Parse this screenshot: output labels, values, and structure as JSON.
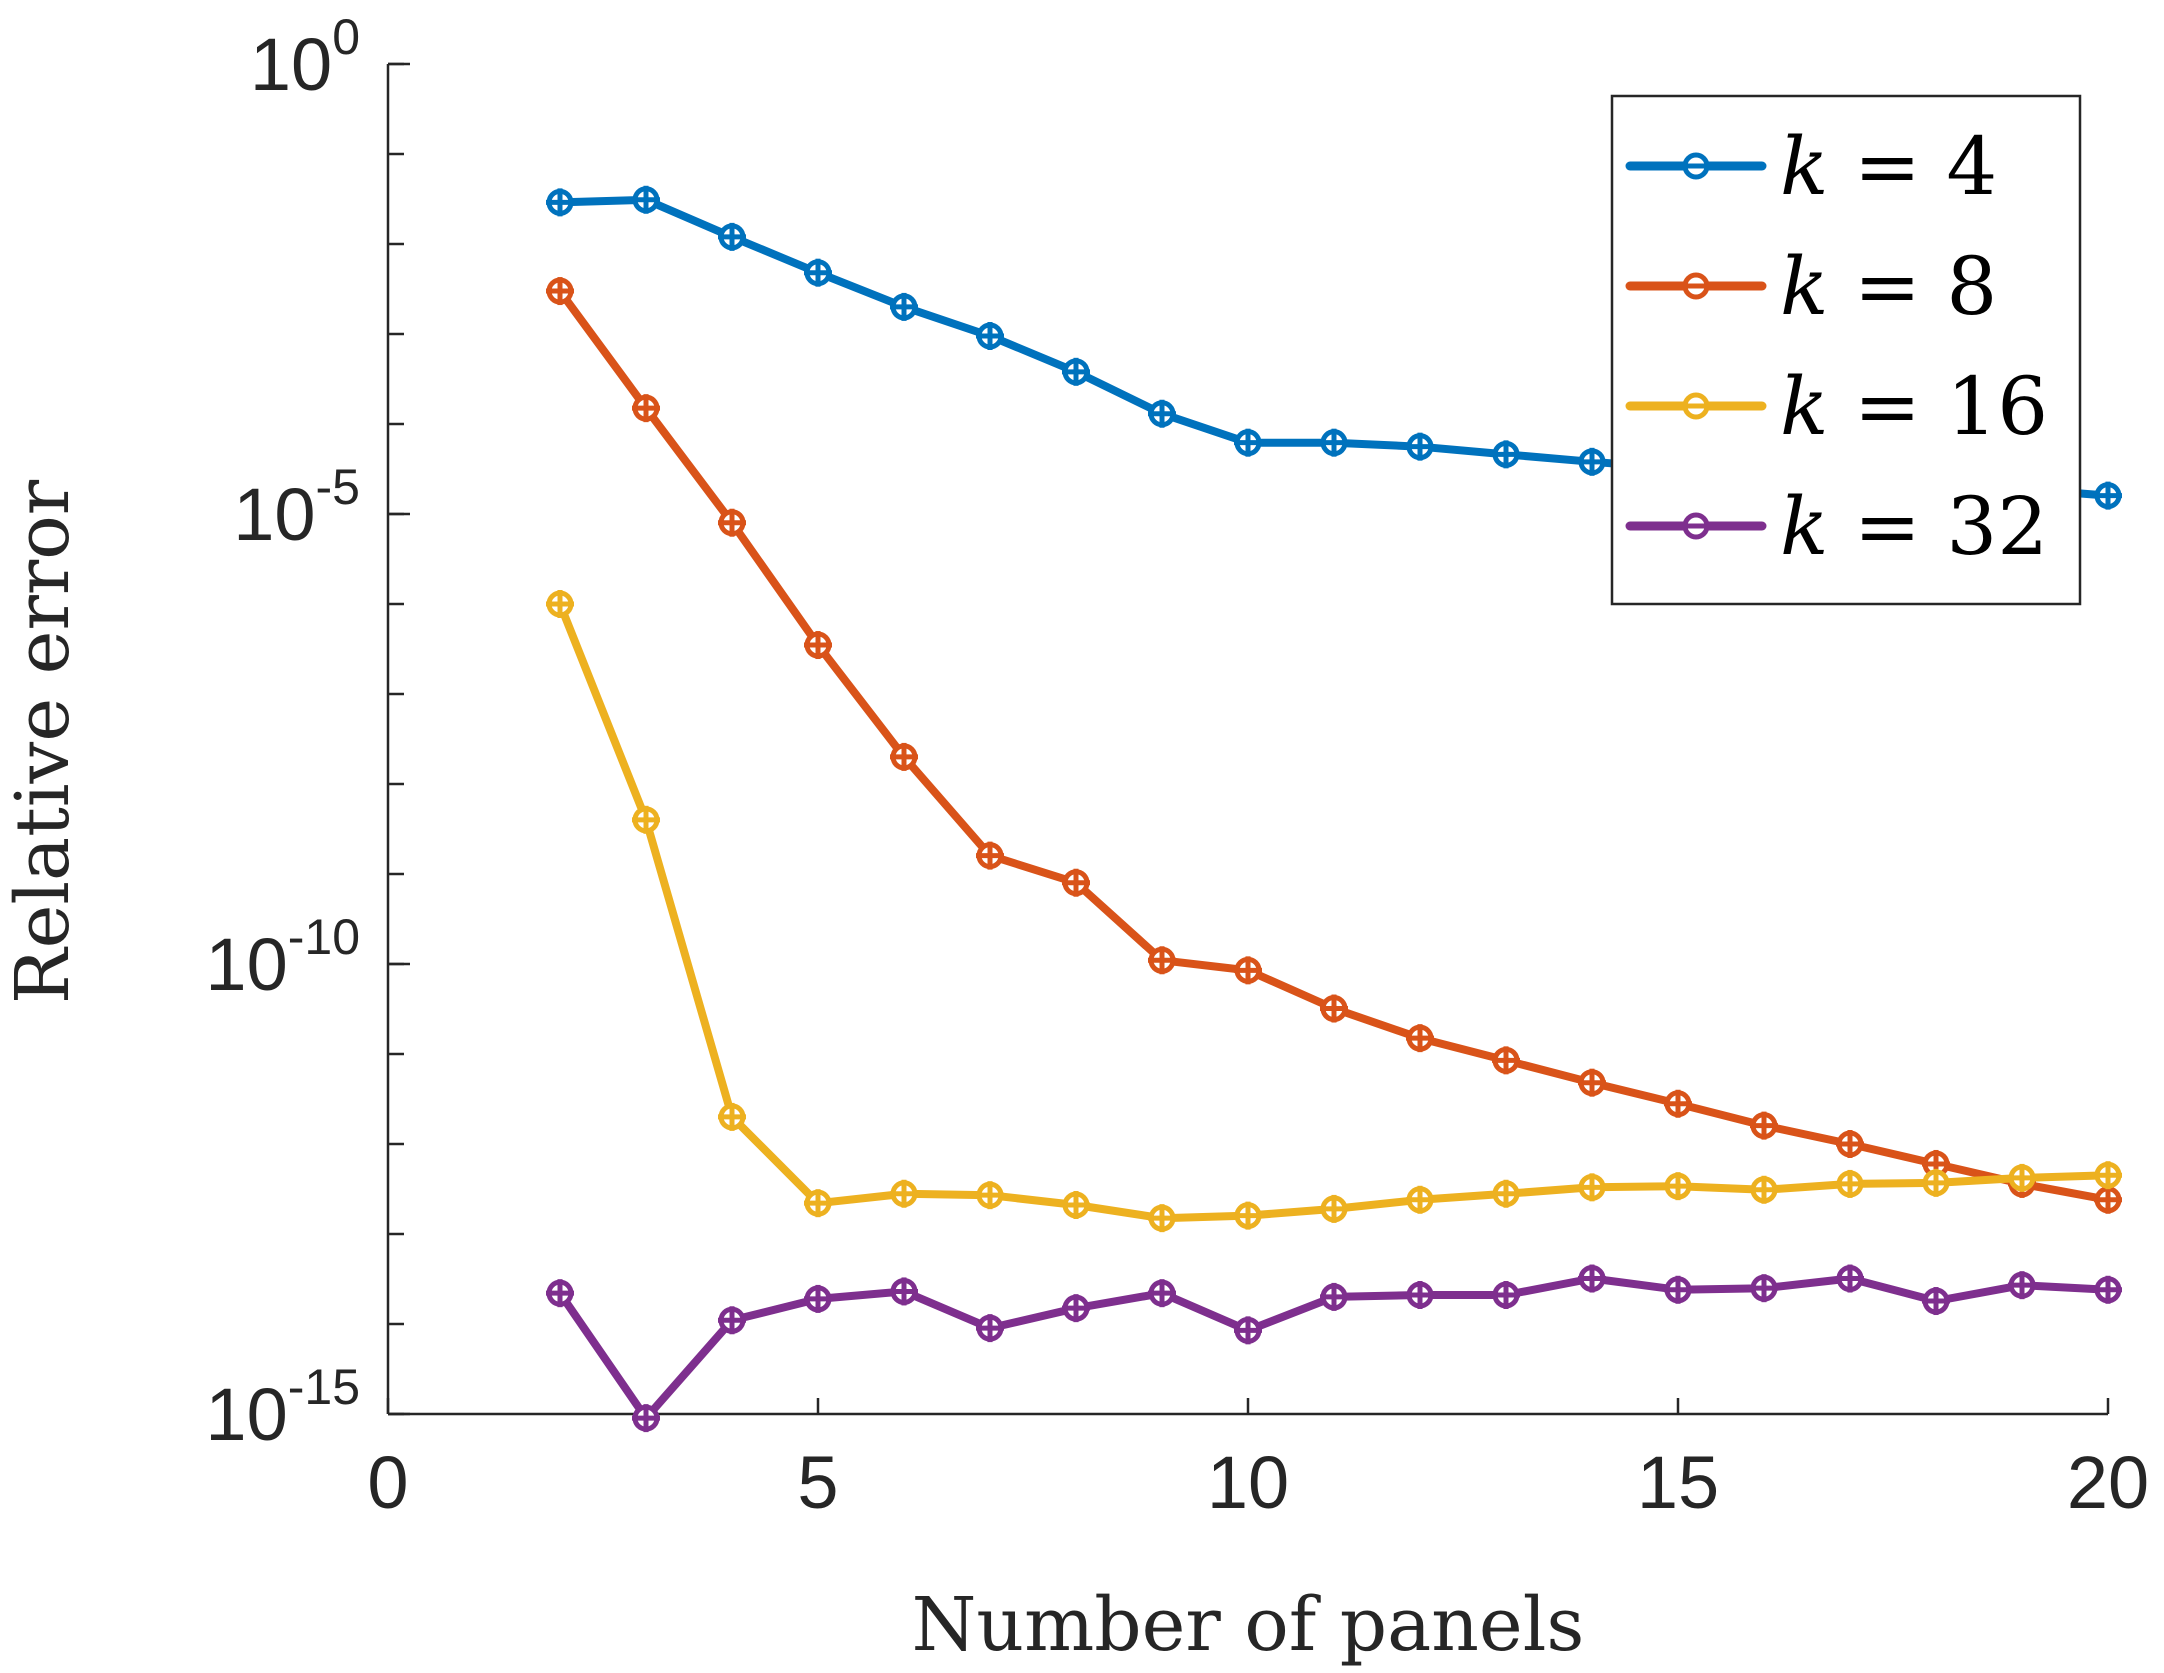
{
  "chart_data": {
    "type": "line",
    "xlabel": "Number of panels",
    "ylabel": "Relative error",
    "xlim": [
      0,
      20
    ],
    "ylim": [
      1e-15,
      1
    ],
    "yscale": "log",
    "xticks": [
      0,
      5,
      10,
      15,
      20
    ],
    "xtick_labels": [
      "0",
      "5",
      "10",
      "15",
      "20"
    ],
    "yticks": [
      1,
      1e-05,
      1e-10,
      1e-15
    ],
    "ytick_labels": [
      {
        "base": "10",
        "exp": "0"
      },
      {
        "base": "10",
        "exp": "-5"
      },
      {
        "base": "10",
        "exp": "-10"
      },
      {
        "base": "10",
        "exp": "-15"
      }
    ],
    "grid": false,
    "legend_position": "top-right",
    "x": [
      2,
      3,
      4,
      5,
      6,
      7,
      8,
      9,
      10,
      11,
      12,
      13,
      14,
      15,
      16,
      17,
      18,
      19,
      20
    ],
    "series": [
      {
        "name": "k = 4",
        "legend_var": "k",
        "legend_rest": " = 4",
        "color": "#0072BD",
        "values": [
          0.029,
          0.031,
          0.012,
          0.0048,
          0.002,
          0.00095,
          0.00038,
          0.00013,
          6.2e-05,
          6.2e-05,
          5.6e-05,
          4.6e-05,
          3.8e-05,
          3.2e-05,
          2.8e-05,
          2.4e-05,
          2.1e-05,
          1.9e-05,
          1.6e-05
        ]
      },
      {
        "name": "k = 8",
        "legend_var": "k",
        "legend_rest": " = 8",
        "color": "#D95319",
        "values": [
          0.003,
          0.00015,
          8e-06,
          3.5e-07,
          2e-08,
          1.6e-09,
          8e-10,
          1.1e-10,
          8.5e-11,
          3.2e-11,
          1.5e-11,
          8.5e-12,
          4.8e-12,
          2.8e-12,
          1.6e-12,
          1e-12,
          6e-13,
          3.6e-13,
          2.4e-13
        ]
      },
      {
        "name": "k = 16",
        "legend_var": "k",
        "legend_rest": " = 16",
        "color": "#EDB120",
        "values": [
          1e-06,
          4e-09,
          2e-12,
          2.2e-13,
          2.8e-13,
          2.7e-13,
          2.1e-13,
          1.5e-13,
          1.6e-13,
          1.9e-13,
          2.4e-13,
          2.8e-13,
          3.3e-13,
          3.4e-13,
          3.1e-13,
          3.6e-13,
          3.7e-13,
          4.2e-13,
          4.5e-13
        ]
      },
      {
        "name": "k = 32",
        "legend_var": "k",
        "legend_rest": " = 32",
        "color": "#7E2F8E",
        "values": [
          2.2e-14,
          9e-16,
          1.1e-14,
          1.9e-14,
          2.3e-14,
          9e-15,
          1.5e-14,
          2.2e-14,
          8.5e-15,
          2e-14,
          2.1e-14,
          2.1e-14,
          3.2e-14,
          2.4e-14,
          2.5e-14,
          3.2e-14,
          1.8e-14,
          2.7e-14,
          2.4e-14
        ]
      }
    ]
  }
}
